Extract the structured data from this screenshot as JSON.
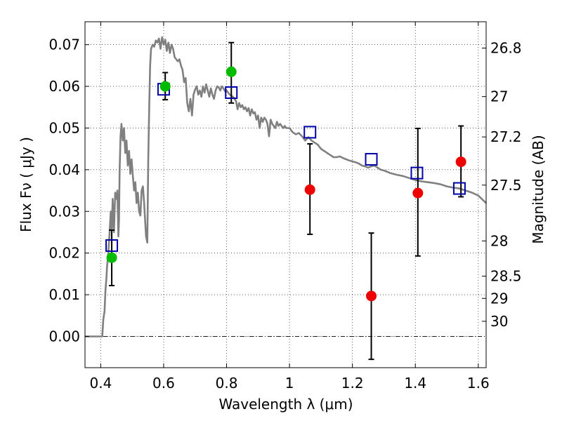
{
  "chart_data": {
    "type": "scatter",
    "xlabel": "Wavelength  λ (μm)",
    "ylabel": "Flux  Fν  ( μJy )",
    "y2label": "Magnitude (AB)",
    "xlim": [
      0.35,
      1.625
    ],
    "ylim": [
      -0.0075,
      0.0755
    ],
    "grid": true,
    "x_ticks": [
      {
        "v": 0.4,
        "label": "0.4"
      },
      {
        "v": 0.6,
        "label": "0.6"
      },
      {
        "v": 0.8,
        "label": "0.8"
      },
      {
        "v": 1.0,
        "label": "1"
      },
      {
        "v": 1.2,
        "label": "1.2"
      },
      {
        "v": 1.4,
        "label": "1.4"
      },
      {
        "v": 1.6,
        "label": "1.6"
      }
    ],
    "y_ticks": [
      {
        "v": 0.0,
        "label": "0.00"
      },
      {
        "v": 0.01,
        "label": "0.01"
      },
      {
        "v": 0.02,
        "label": "0.02"
      },
      {
        "v": 0.03,
        "label": "0.03"
      },
      {
        "v": 0.04,
        "label": "0.04"
      },
      {
        "v": 0.05,
        "label": "0.05"
      },
      {
        "v": 0.06,
        "label": "0.06"
      },
      {
        "v": 0.07,
        "label": "0.07"
      }
    ],
    "magnitude_ticks": [
      {
        "mag": 26.8,
        "label": "26.8"
      },
      {
        "mag": 27.0,
        "label": "27"
      },
      {
        "mag": 27.2,
        "label": "27.2"
      },
      {
        "mag": 27.5,
        "label": "27.5"
      },
      {
        "mag": 28.0,
        "label": "28"
      },
      {
        "mag": 28.5,
        "label": "28.5"
      },
      {
        "mag": 29.0,
        "label": "29"
      },
      {
        "mag": 30.0,
        "label": "30"
      }
    ],
    "series": [
      {
        "kind": "line",
        "color": "#808080",
        "points": [
          [
            0.35,
            0.0
          ],
          [
            0.4,
            0.0
          ],
          [
            0.405,
            0.0
          ],
          [
            0.408,
            0.004
          ],
          [
            0.412,
            0.006
          ],
          [
            0.415,
            0.011
          ],
          [
            0.418,
            0.014
          ],
          [
            0.42,
            0.0165
          ],
          [
            0.424,
            0.02
          ],
          [
            0.428,
            0.0245
          ],
          [
            0.432,
            0.03
          ],
          [
            0.435,
            0.0255
          ],
          [
            0.438,
            0.033
          ],
          [
            0.442,
            0.025
          ],
          [
            0.446,
            0.0345
          ],
          [
            0.45,
            0.033
          ],
          [
            0.453,
            0.035
          ],
          [
            0.456,
            0.024
          ],
          [
            0.458,
            0.028
          ],
          [
            0.46,
            0.04
          ],
          [
            0.463,
            0.048
          ],
          [
            0.466,
            0.051
          ],
          [
            0.47,
            0.047
          ],
          [
            0.474,
            0.05
          ],
          [
            0.478,
            0.044
          ],
          [
            0.482,
            0.047
          ],
          [
            0.486,
            0.041
          ],
          [
            0.49,
            0.0445
          ],
          [
            0.494,
            0.039
          ],
          [
            0.498,
            0.0425
          ],
          [
            0.502,
            0.0385
          ],
          [
            0.506,
            0.035
          ],
          [
            0.51,
            0.037
          ],
          [
            0.514,
            0.032
          ],
          [
            0.518,
            0.0345
          ],
          [
            0.522,
            0.03
          ],
          [
            0.526,
            0.029
          ],
          [
            0.53,
            0.035
          ],
          [
            0.534,
            0.036
          ],
          [
            0.538,
            0.032
          ],
          [
            0.541,
            0.028
          ],
          [
            0.544,
            0.024
          ],
          [
            0.548,
            0.0225
          ],
          [
            0.551,
            0.042
          ],
          [
            0.554,
            0.055
          ],
          [
            0.557,
            0.065
          ],
          [
            0.56,
            0.069
          ],
          [
            0.565,
            0.07
          ],
          [
            0.57,
            0.0695
          ],
          [
            0.575,
            0.071
          ],
          [
            0.58,
            0.0705
          ],
          [
            0.585,
            0.0715
          ],
          [
            0.59,
            0.069
          ],
          [
            0.595,
            0.0718
          ],
          [
            0.6,
            0.07
          ],
          [
            0.605,
            0.0712
          ],
          [
            0.61,
            0.0685
          ],
          [
            0.615,
            0.0705
          ],
          [
            0.62,
            0.068
          ],
          [
            0.625,
            0.07
          ],
          [
            0.63,
            0.069
          ],
          [
            0.635,
            0.067
          ],
          [
            0.64,
            0.0665
          ],
          [
            0.645,
            0.066
          ],
          [
            0.65,
            0.0665
          ],
          [
            0.655,
            0.065
          ],
          [
            0.66,
            0.064
          ],
          [
            0.665,
            0.061
          ],
          [
            0.67,
            0.062
          ],
          [
            0.675,
            0.056
          ],
          [
            0.68,
            0.054
          ],
          [
            0.685,
            0.057
          ],
          [
            0.69,
            0.053
          ],
          [
            0.695,
            0.058
          ],
          [
            0.7,
            0.0592
          ],
          [
            0.705,
            0.06
          ],
          [
            0.71,
            0.058
          ],
          [
            0.715,
            0.059
          ],
          [
            0.72,
            0.0575
          ],
          [
            0.725,
            0.06
          ],
          [
            0.73,
            0.0585
          ],
          [
            0.735,
            0.0605
          ],
          [
            0.74,
            0.059
          ],
          [
            0.745,
            0.0575
          ],
          [
            0.75,
            0.0595
          ],
          [
            0.755,
            0.058
          ],
          [
            0.76,
            0.057
          ],
          [
            0.765,
            0.059
          ],
          [
            0.77,
            0.06
          ],
          [
            0.775,
            0.0598
          ],
          [
            0.78,
            0.059
          ],
          [
            0.785,
            0.06
          ],
          [
            0.79,
            0.0595
          ],
          [
            0.795,
            0.0588
          ],
          [
            0.8,
            0.059
          ],
          [
            0.805,
            0.0585
          ],
          [
            0.81,
            0.058
          ],
          [
            0.815,
            0.0578
          ],
          [
            0.82,
            0.0575
          ],
          [
            0.825,
            0.057
          ],
          [
            0.83,
            0.0565
          ],
          [
            0.835,
            0.0545
          ],
          [
            0.84,
            0.056
          ],
          [
            0.845,
            0.055
          ],
          [
            0.85,
            0.0555
          ],
          [
            0.855,
            0.0545
          ],
          [
            0.86,
            0.055
          ],
          [
            0.865,
            0.054
          ],
          [
            0.87,
            0.0548
          ],
          [
            0.875,
            0.053
          ],
          [
            0.88,
            0.0545
          ],
          [
            0.885,
            0.0535
          ],
          [
            0.89,
            0.0538
          ],
          [
            0.895,
            0.052
          ],
          [
            0.9,
            0.053
          ],
          [
            0.905,
            0.05
          ],
          [
            0.91,
            0.0525
          ],
          [
            0.915,
            0.0515
          ],
          [
            0.92,
            0.0525
          ],
          [
            0.925,
            0.052
          ],
          [
            0.93,
            0.051
          ],
          [
            0.935,
            0.048
          ],
          [
            0.94,
            0.052
          ],
          [
            0.945,
            0.051
          ],
          [
            0.95,
            0.0505
          ],
          [
            0.955,
            0.05
          ],
          [
            0.96,
            0.0515
          ],
          [
            0.965,
            0.0505
          ],
          [
            0.97,
            0.051
          ],
          [
            0.975,
            0.0505
          ],
          [
            0.98,
            0.05
          ],
          [
            0.985,
            0.0505
          ],
          [
            0.99,
            0.05
          ],
          [
            1.0,
            0.05
          ],
          [
            1.01,
            0.049
          ],
          [
            1.02,
            0.0485
          ],
          [
            1.03,
            0.0488
          ],
          [
            1.04,
            0.048
          ],
          [
            1.05,
            0.047
          ],
          [
            1.06,
            0.0478
          ],
          [
            1.07,
            0.047
          ],
          [
            1.08,
            0.0465
          ],
          [
            1.09,
            0.046
          ],
          [
            1.1,
            0.045
          ],
          [
            1.11,
            0.0445
          ],
          [
            1.12,
            0.044
          ],
          [
            1.13,
            0.0435
          ],
          [
            1.14,
            0.043
          ],
          [
            1.15,
            0.043
          ],
          [
            1.16,
            0.0432
          ],
          [
            1.17,
            0.0428
          ],
          [
            1.18,
            0.0425
          ],
          [
            1.19,
            0.0422
          ],
          [
            1.2,
            0.042
          ],
          [
            1.21,
            0.0418
          ],
          [
            1.22,
            0.0415
          ],
          [
            1.23,
            0.041
          ],
          [
            1.24,
            0.0408
          ],
          [
            1.25,
            0.0405
          ],
          [
            1.26,
            0.0408
          ],
          [
            1.27,
            0.041
          ],
          [
            1.28,
            0.0405
          ],
          [
            1.29,
            0.04
          ],
          [
            1.3,
            0.0398
          ],
          [
            1.32,
            0.0392
          ],
          [
            1.34,
            0.0388
          ],
          [
            1.36,
            0.0385
          ],
          [
            1.38,
            0.038
          ],
          [
            1.4,
            0.0375
          ],
          [
            1.42,
            0.0372
          ],
          [
            1.44,
            0.037
          ],
          [
            1.46,
            0.0368
          ],
          [
            1.48,
            0.0365
          ],
          [
            1.5,
            0.036
          ],
          [
            1.52,
            0.0357
          ],
          [
            1.54,
            0.0355
          ],
          [
            1.56,
            0.035
          ],
          [
            1.58,
            0.0345
          ],
          [
            1.6,
            0.0338
          ],
          [
            1.625,
            0.032
          ]
        ]
      },
      {
        "kind": "open-square",
        "color": "#0000aa",
        "points": [
          [
            0.435,
            0.0218
          ],
          [
            0.6,
            0.0593
          ],
          [
            0.815,
            0.0585
          ],
          [
            1.065,
            0.049
          ],
          [
            1.26,
            0.0425
          ],
          [
            1.405,
            0.0392
          ],
          [
            1.54,
            0.0355
          ]
        ]
      },
      {
        "kind": "errorbar",
        "color": "#000000",
        "bars": [
          [
            0.435,
            0.0122,
            0.0255
          ],
          [
            0.605,
            0.0568,
            0.0633
          ],
          [
            0.815,
            0.056,
            0.0705
          ],
          [
            1.065,
            0.0245,
            0.0462
          ],
          [
            1.26,
            -0.0055,
            0.0248
          ],
          [
            1.408,
            0.0193,
            0.0499
          ],
          [
            1.545,
            0.0335,
            0.0505
          ]
        ]
      },
      {
        "kind": "dot",
        "color": "#00bb00",
        "points": [
          [
            0.435,
            0.0189
          ],
          [
            0.605,
            0.06
          ],
          [
            0.815,
            0.0635
          ]
        ]
      },
      {
        "kind": "dot",
        "color": "#ee0000",
        "points": [
          [
            1.065,
            0.0352
          ],
          [
            1.26,
            0.0097
          ],
          [
            1.408,
            0.0344
          ],
          [
            1.545,
            0.0419
          ]
        ]
      }
    ]
  }
}
